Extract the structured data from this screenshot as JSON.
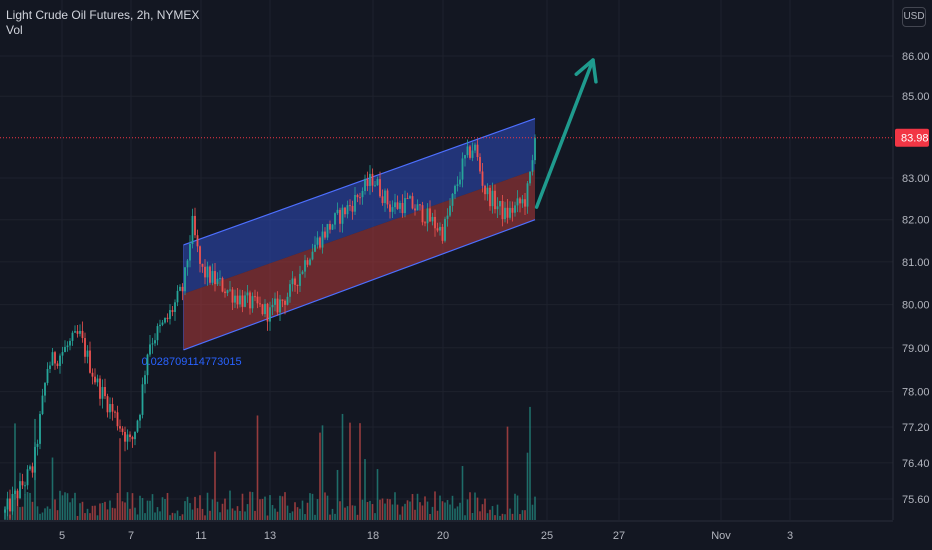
{
  "legend": {
    "title": "Light Crude Oil Futures, 2h, NYMEX",
    "vol_label": "Vol"
  },
  "currency_button": "USD",
  "colors": {
    "background": "#131722",
    "up": "#26a69a",
    "down": "#ef5350",
    "channel_upper": "#2f4dbf",
    "channel_lower": "#b23a3a",
    "channel_line": "#4d6fff",
    "arrow": "#1f9b8e",
    "price_tag": "#f23645",
    "grid": "#1e222d",
    "axis_text": "#b2b5be"
  },
  "chart_data": {
    "type": "candlestick",
    "title": "Light Crude Oil Futures, 2h, NYMEX",
    "volume_label": "Vol",
    "y_ticks": [
      "86.00",
      "85.00",
      "83.00",
      "82.00",
      "81.00",
      "80.00",
      "79.00",
      "78.00",
      "77.20",
      "76.40",
      "75.60"
    ],
    "y_scale": "log",
    "x_ticks": [
      "5",
      "7",
      "11",
      "13",
      "18",
      "20",
      "25",
      "27",
      "Nov",
      "3"
    ],
    "x_range": [
      "Oct 3",
      "Nov 4"
    ],
    "last_price": "83.98",
    "annotation": "0.028709114773015",
    "price_path": [
      [
        "Oct 3",
        75.3
      ],
      [
        "Oct 4",
        76.3
      ],
      [
        "Oct 4 12:00",
        78.6
      ],
      [
        "Oct 5",
        78.9
      ],
      [
        "Oct 5 12:00",
        79.3
      ],
      [
        "Oct 6",
        78.2
      ],
      [
        "Oct 6 12:00",
        77.5
      ],
      [
        "Oct 7",
        76.8
      ],
      [
        "Oct 7 12:00",
        77.6
      ],
      [
        "Oct 8",
        79.1
      ],
      [
        "Oct 9",
        79.6
      ],
      [
        "Oct 10",
        80.4
      ],
      [
        "Oct 10 12:00",
        81.9
      ],
      [
        "Oct 11",
        80.8
      ],
      [
        "Oct 12",
        80.2
      ],
      [
        "Oct 13",
        79.8
      ],
      [
        "Oct 14",
        80.3
      ],
      [
        "Oct 15",
        81.3
      ],
      [
        "Oct 16",
        81.9
      ],
      [
        "Oct 17",
        82.4
      ],
      [
        "Oct 18",
        83.0
      ],
      [
        "Oct 18 12:00",
        82.3
      ],
      [
        "Oct 19",
        82.4
      ],
      [
        "Oct 19 12:00",
        82.1
      ],
      [
        "Oct 20",
        81.7
      ],
      [
        "Oct 21",
        83.4
      ],
      [
        "Oct 21 12:00",
        83.8
      ],
      [
        "Oct 22",
        82.7
      ],
      [
        "Oct 23",
        82.1
      ],
      [
        "Oct 24",
        82.5
      ],
      [
        "Oct 24 12:00",
        83.98
      ]
    ],
    "volume_scale": "relative",
    "channel": {
      "start": "Oct 10",
      "end": "Oct 25",
      "upper_start": 81.4,
      "upper_end": 84.45,
      "median_start": 80.25,
      "median_end": 83.2,
      "lower_start": 78.95,
      "lower_end": 82.0,
      "fills": [
        "blue",
        "red"
      ]
    },
    "arrow": {
      "from": [
        "Oct 24 12:00",
        82.3
      ],
      "to": [
        "Oct 26 12:00",
        86.0
      ]
    },
    "grid": true,
    "legend_position": "top-left"
  }
}
